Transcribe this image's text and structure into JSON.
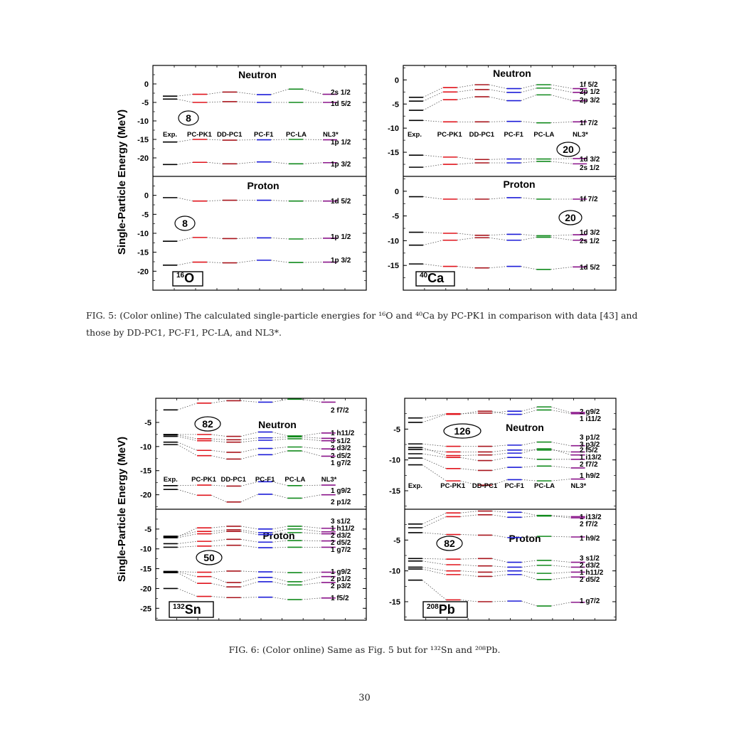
{
  "colors": {
    "exp": "#000000",
    "pc_pk1": "#e0141c",
    "dd_pc1": "#a8141c",
    "pc_f1": "#1c1cd8",
    "pc_la": "#108a1c",
    "nl3": "#8a148a"
  },
  "axis_label": "Single-Particle Energy (MeV)",
  "model_labels": [
    "Exp.",
    "PC-PK1",
    "DD-PC1",
    "PC-F1",
    "PC-LA",
    "NL3*"
  ],
  "fig5_caption": "FIG. 5: (Color online) The calculated single-particle energies for ¹⁶O and ⁴⁰Ca by PC-PK1 in comparison with data [43] and those by DD-PC1, PC-F1, PC-LA, and NL3*.",
  "fig6_caption": "FIG. 6: (Color online) Same as Fig. 5 but for ¹³²Sn and ²⁰⁸Pb.",
  "page_number": "30",
  "chart_data": [
    {
      "type": "level-diagram",
      "nucleus_label": "16O",
      "panels": [
        {
          "title": "Neutron",
          "magic_number": "8",
          "ylim": [
            -25,
            5
          ],
          "ticks": [
            0,
            -5,
            -10,
            -15,
            -20
          ],
          "levels": [
            {
              "label": "2s 1/2",
              "values": [
                -3.3,
                -2.8,
                -2.2,
                -2.9,
                -1.4,
                -2.8
              ]
            },
            {
              "label": "1d 5/2",
              "values": [
                -4.1,
                -5.0,
                -4.8,
                -5.0,
                -5.0,
                -5.0
              ]
            },
            {
              "label": "1p 1/2",
              "values": [
                -15.7,
                -15.0,
                -15.2,
                -15.1,
                -15.0,
                -15.1
              ]
            },
            {
              "label": "1p 3/2",
              "values": [
                -21.8,
                -21.2,
                -21.6,
                -21.1,
                -21.6,
                -21.3
              ]
            }
          ]
        },
        {
          "title": "Proton",
          "magic_number": "8",
          "ylim": [
            -25,
            5
          ],
          "ticks": [
            0,
            -5,
            -10,
            -15,
            -20
          ],
          "levels": [
            {
              "label": "1d 5/2",
              "values": [
                -0.6,
                -1.5,
                -1.3,
                -1.3,
                -1.5,
                -1.5
              ]
            },
            {
              "label": "1p 1/2",
              "values": [
                -12.1,
                -11.1,
                -11.4,
                -11.2,
                -11.5,
                -11.3
              ]
            },
            {
              "label": "1p 3/2",
              "values": [
                -18.4,
                -17.6,
                -17.8,
                -17.1,
                -17.7,
                -17.6
              ]
            }
          ]
        }
      ]
    },
    {
      "type": "level-diagram",
      "nucleus_label": "40Ca",
      "panels": [
        {
          "title": "Neutron",
          "magic_number": "20",
          "ylim": [
            -20,
            3
          ],
          "ticks": [
            0,
            -5,
            -10,
            -15
          ],
          "levels": [
            {
              "label": "1f 5/2",
              "values": [
                -3.6,
                -1.6,
                -1.0,
                -1.8,
                -1.0,
                -1.8
              ]
            },
            {
              "label": "2p 1/2",
              "values": [
                -4.4,
                -2.5,
                -2.0,
                -2.6,
                -1.7,
                -2.6
              ]
            },
            {
              "label": "2p 3/2",
              "values": [
                -6.3,
                -4.1,
                -3.5,
                -4.3,
                -3.1,
                -4.3
              ]
            },
            {
              "label": "1f 7/2",
              "values": [
                -8.4,
                -8.7,
                -8.7,
                -8.6,
                -8.9,
                -8.7
              ]
            },
            {
              "label": "1d 3/2",
              "values": [
                -15.6,
                -16.0,
                -16.5,
                -16.4,
                -16.4,
                -16.3
              ]
            },
            {
              "label": "2s 1/2",
              "values": [
                -18.1,
                -17.5,
                -17.2,
                -17.2,
                -16.9,
                -17.4
              ]
            }
          ]
        },
        {
          "title": "Proton",
          "magic_number": "20",
          "ylim": [
            -20,
            3
          ],
          "ticks": [
            0,
            -5,
            -10,
            -15
          ],
          "levels": [
            {
              "label": "1f 7/2",
              "values": [
                -1.1,
                -1.6,
                -1.6,
                -1.3,
                -1.6,
                -1.6
              ]
            },
            {
              "label": "1d 3/2",
              "values": [
                -8.3,
                -8.5,
                -8.9,
                -8.7,
                -9.0,
                -8.8
              ]
            },
            {
              "label": "2s 1/2",
              "values": [
                -10.9,
                -9.9,
                -9.4,
                -9.9,
                -9.3,
                -9.9
              ]
            },
            {
              "label": "1d 5/2",
              "values": [
                -14.7,
                -15.2,
                -15.5,
                -15.2,
                -15.8,
                -15.3
              ]
            }
          ]
        }
      ]
    },
    {
      "type": "level-diagram",
      "nucleus_label": "132Sn",
      "panels": [
        {
          "title": "Neutron",
          "magic_number": "82",
          "ylim": [
            -23,
            0
          ],
          "ticks": [
            -5,
            -10,
            -15,
            -20
          ],
          "levels": [
            {
              "label": "2 f7/2",
              "values": [
                -2.4,
                -1.0,
                -0.5,
                -0.8,
                -0.2,
                -0.8
              ]
            },
            {
              "label": "1 h11/2",
              "values": [
                -7.5,
                -7.5,
                -7.9,
                -7.0,
                -7.8,
                -7.2
              ]
            },
            {
              "label": "3 s1/2",
              "values": [
                -7.6,
                -8.4,
                -8.6,
                -8.2,
                -8.0,
                -8.3
              ]
            },
            {
              "label": "2 d3/2",
              "values": [
                -7.9,
                -8.8,
                -9.1,
                -8.7,
                -8.4,
                -8.8
              ]
            },
            {
              "label": "2 d5/2",
              "values": [
                -9.1,
                -10.8,
                -11.2,
                -10.4,
                -10.1,
                -10.5
              ]
            },
            {
              "label": "1 g7/2",
              "values": [
                -9.6,
                -11.9,
                -12.6,
                -11.7,
                -10.9,
                -12.0
              ]
            },
            {
              "label": "1 g9/2",
              "values": [
                -18.1,
                -18.0,
                -18.2,
                -17.3,
                -18.1,
                -18.0
              ]
            },
            {
              "label": "2 p1/2",
              "values": [
                -18.9,
                -20.1,
                -21.5,
                -19.9,
                -20.7,
                -20.0
              ]
            }
          ]
        },
        {
          "title": "Proton",
          "magic_number": "50",
          "ylim": [
            -28,
            0
          ],
          "ticks": [
            -5,
            -10,
            -15,
            -20,
            -25
          ],
          "levels": [
            {
              "label": "3 s1/2",
              "values": [
                -7.0,
                -4.7,
                -4.3,
                -5.0,
                -4.3,
                -4.8
              ]
            },
            {
              "label": "1 h11/2",
              "values": [
                -6.8,
                -5.6,
                -5.2,
                -5.9,
                -5.0,
                -5.7
              ]
            },
            {
              "label": "2 d3/2",
              "values": [
                -7.2,
                -6.2,
                -5.6,
                -6.4,
                -5.9,
                -6.2
              ]
            },
            {
              "label": "2 d5/2",
              "values": [
                -8.7,
                -8.1,
                -7.6,
                -8.3,
                -7.9,
                -8.0
              ]
            },
            {
              "label": "1 g7/2",
              "values": [
                -9.6,
                -9.3,
                -9.1,
                -9.7,
                -9.6,
                -9.6
              ]
            },
            {
              "label": "1 g9/2",
              "values": [
                -15.7,
                -15.9,
                -15.6,
                -15.8,
                -16.0,
                -15.9
              ]
            },
            {
              "label": "2 p1/2",
              "values": [
                -15.8,
                -17.0,
                -18.5,
                -17.2,
                -18.3,
                -17.0
              ]
            },
            {
              "label": "2 p3/2",
              "values": [
                -16.0,
                -18.7,
                -19.6,
                -18.3,
                -19.1,
                -18.5
              ]
            },
            {
              "label": "1 f5/2",
              "values": [
                -20.0,
                -22.0,
                -22.3,
                -22.2,
                -22.8,
                -22.4
              ]
            }
          ]
        }
      ]
    },
    {
      "type": "level-diagram",
      "nucleus_label": "208Pb",
      "panels": [
        {
          "title": "Neutron",
          "magic_number": "126",
          "ylim": [
            -18,
            0
          ],
          "ticks": [
            -5,
            -10,
            -15
          ],
          "levels": [
            {
              "label": "2 g9/2",
              "values": [
                -3.9,
                -2.6,
                -2.1,
                -2.6,
                -1.9,
                -2.5
              ]
            },
            {
              "label": "1 i11/2",
              "values": [
                -3.2,
                -2.5,
                -2.4,
                -2.1,
                -1.4,
                -2.3
              ]
            },
            {
              "label": "3 p1/2",
              "values": [
                -7.4,
                -7.8,
                -7.8,
                -7.6,
                -7.1,
                -7.7
              ]
            },
            {
              "label": "3 p3/2",
              "values": [
                -8.3,
                -8.7,
                -8.7,
                -8.4,
                -8.4,
                -8.7
              ]
            },
            {
              "label": "2 f5/2",
              "values": [
                -8.0,
                -9.3,
                -9.2,
                -8.9,
                -8.2,
                -9.2
              ]
            },
            {
              "label": "1 i13/2",
              "values": [
                -9.0,
                -9.6,
                -10.1,
                -9.6,
                -9.9,
                -9.9
              ]
            },
            {
              "label": "2 f7/2",
              "values": [
                -9.7,
                -11.4,
                -11.7,
                -11.2,
                -11.0,
                -11.3
              ]
            },
            {
              "label": "1 h9/2",
              "values": [
                -10.8,
                -13.4,
                -14.1,
                -13.2,
                -13.4,
                -13.1
              ]
            }
          ]
        },
        {
          "title": "Proton",
          "magic_number": "82",
          "ylim": [
            -18,
            0
          ],
          "ticks": [
            -5,
            -10,
            -15
          ],
          "levels": [
            {
              "label": "1 i13/2",
              "values": [
                -2.4,
                -0.6,
                -0.3,
                -0.5,
                -1.0,
                -1.2
              ]
            },
            {
              "label": "2 f7/2",
              "values": [
                -3.0,
                -1.2,
                -0.9,
                -1.3,
                -1.1,
                -1.4
              ]
            },
            {
              "label": "1 h9/2",
              "values": [
                -3.8,
                -4.1,
                -4.2,
                -4.6,
                -4.4,
                -4.5
              ]
            },
            {
              "label": "3 s1/2",
              "values": [
                -8.0,
                -8.1,
                -8.0,
                -8.6,
                -8.3,
                -8.6
              ]
            },
            {
              "label": "2 d3/2",
              "values": [
                -8.4,
                -9.0,
                -9.2,
                -9.4,
                -9.1,
                -9.4
              ]
            },
            {
              "label": "1 h11/2",
              "values": [
                -9.4,
                -10.0,
                -10.2,
                -10.0,
                -10.4,
                -10.2
              ]
            },
            {
              "label": "2 d5/2",
              "values": [
                -9.7,
                -10.6,
                -10.9,
                -10.6,
                -11.4,
                -11.0
              ]
            },
            {
              "label": "1 g7/2",
              "values": [
                -11.5,
                -14.7,
                -15.0,
                -14.9,
                -15.7,
                -15.1
              ]
            }
          ]
        }
      ]
    }
  ]
}
